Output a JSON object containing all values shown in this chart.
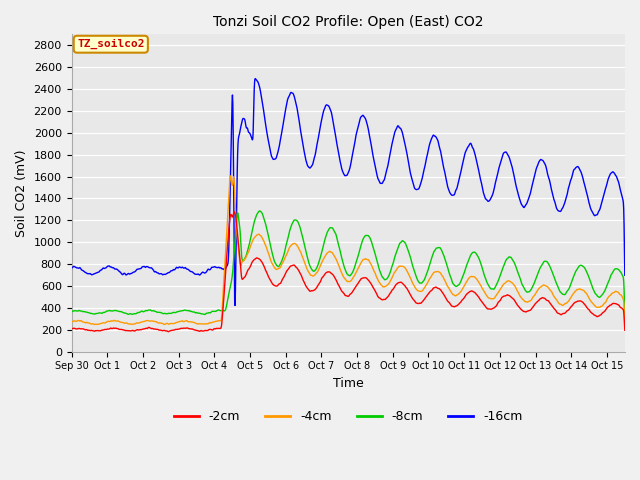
{
  "title": "Tonzi Soil CO2 Profile: Open (East) CO2",
  "ylabel": "Soil CO2 (mV)",
  "xlabel": "Time",
  "ylim": [
    0,
    2900
  ],
  "yticks": [
    0,
    200,
    400,
    600,
    800,
    1000,
    1200,
    1400,
    1600,
    1800,
    2000,
    2200,
    2400,
    2600,
    2800
  ],
  "label_box_text": "TZ_soilco2",
  "label_box_color": "#ffffcc",
  "label_box_edge": "#cc8800",
  "label_text_color": "#cc0000",
  "plot_bg_color": "#e8e8e8",
  "line_colors": {
    "2cm": "#ff0000",
    "4cm": "#ff9900",
    "8cm": "#00cc00",
    "16cm": "#0000ff"
  },
  "legend_labels": [
    "-2cm",
    "-4cm",
    "-8cm",
    "-16cm"
  ],
  "legend_colors": [
    "#ff0000",
    "#ff9900",
    "#00cc00",
    "#0000ff"
  ],
  "x_tick_labels": [
    "Sep 30",
    "Oct 1",
    "Oct 2",
    "Oct 3",
    "Oct 4",
    "Oct 5",
    "Oct 6",
    "Oct 7",
    "Oct 8",
    "Oct 9",
    "Oct 10",
    "Oct 11",
    "Oct 12",
    "Oct 13",
    "Oct 14",
    "Oct 15"
  ]
}
